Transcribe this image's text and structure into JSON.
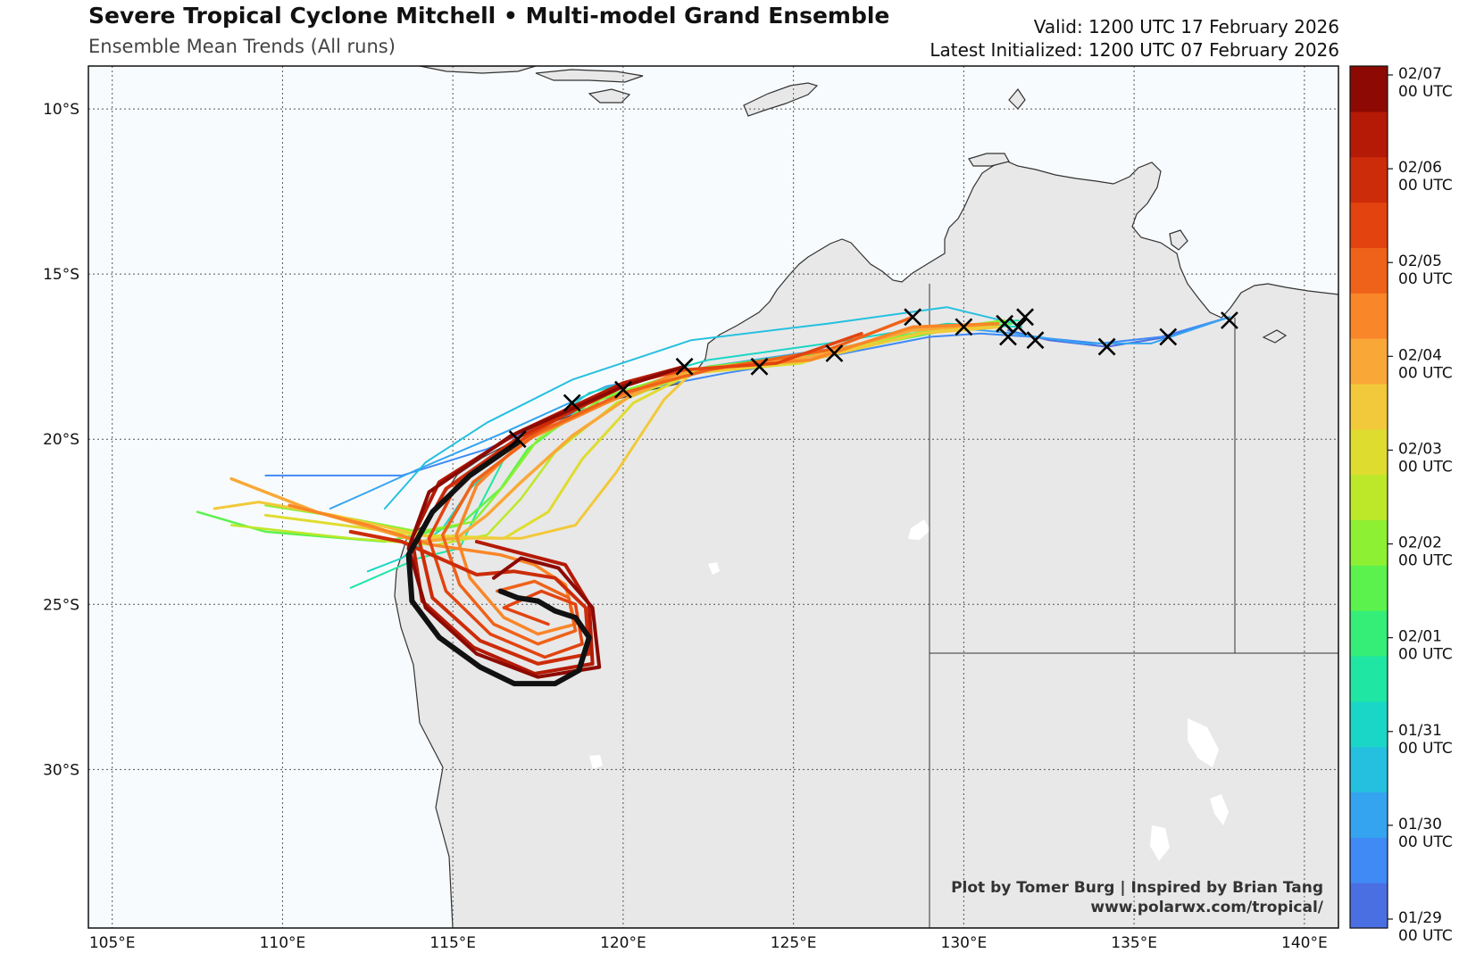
{
  "header": {
    "title": "Severe Tropical Cyclone Mitchell • Multi-model Grand Ensemble",
    "subtitle": "Ensemble Mean Trends (All runs)",
    "valid": "Valid: 1200 UTC 17 February 2026",
    "latest": "Latest Initialized: 1200 UTC 07 February 2026"
  },
  "credits": {
    "line1": "Plot by Tomer Burg | Inspired by Brian Tang",
    "line2": "www.polarwx.com/tropical/"
  },
  "map": {
    "lon_range": [
      104.3,
      141.0
    ],
    "lat_range": [
      -34.8,
      -8.7
    ],
    "lon_ticks": [
      {
        "value": 105,
        "label": "105°E"
      },
      {
        "value": 110,
        "label": "110°E"
      },
      {
        "value": 115,
        "label": "115°E"
      },
      {
        "value": 120,
        "label": "120°E"
      },
      {
        "value": 125,
        "label": "125°E"
      },
      {
        "value": 130,
        "label": "130°E"
      },
      {
        "value": 135,
        "label": "135°E"
      },
      {
        "value": 140,
        "label": "140°E"
      }
    ],
    "lat_ticks": [
      {
        "value": -10,
        "label": "10°S"
      },
      {
        "value": -15,
        "label": "15°S"
      },
      {
        "value": -20,
        "label": "20°S"
      },
      {
        "value": -25,
        "label": "25°S"
      },
      {
        "value": -30,
        "label": "30°S"
      }
    ],
    "gridlines": true,
    "ocean_color": "#f8fbfd",
    "land_color": "#e8e8e8"
  },
  "colorbar": {
    "colors": [
      "#4a6fe3",
      "#3f8af5",
      "#35a4f0",
      "#25c0e0",
      "#1ad6c6",
      "#1fe6a3",
      "#34ee78",
      "#5cf24d",
      "#8df033",
      "#bde82a",
      "#dfdc30",
      "#f2c93a",
      "#f9a838",
      "#f98628",
      "#ef6219",
      "#e2430f",
      "#cc2c09",
      "#b41a06",
      "#8c0a03"
    ],
    "labels": [
      {
        "line1": "02/07",
        "line2": "00 UTC"
      },
      {
        "line1": "02/06",
        "line2": "00 UTC"
      },
      {
        "line1": "02/05",
        "line2": "00 UTC"
      },
      {
        "line1": "02/04",
        "line2": "00 UTC"
      },
      {
        "line1": "02/03",
        "line2": "00 UTC"
      },
      {
        "line1": "02/02",
        "line2": "00 UTC"
      },
      {
        "line1": "02/01",
        "line2": "00 UTC"
      },
      {
        "line1": "01/31",
        "line2": "00 UTC"
      },
      {
        "line1": "01/30",
        "line2": "00 UTC"
      },
      {
        "line1": "01/29",
        "line2": "00 UTC"
      }
    ]
  },
  "tracks": [
    {
      "color": "#4a6fe3",
      "width": 2,
      "points": [
        [
          137.8,
          -16.3
        ],
        [
          136,
          -16.9
        ],
        [
          134.2,
          -17.2
        ],
        [
          132.5,
          -17.0
        ],
        [
          131.3,
          -16.7
        ]
      ]
    },
    {
      "color": "#3f8af5",
      "width": 2,
      "points": [
        [
          137.8,
          -16.3
        ],
        [
          135.8,
          -16.9
        ],
        [
          134,
          -17.1
        ],
        [
          132,
          -16.9
        ],
        [
          130.5,
          -16.8
        ],
        [
          129,
          -16.9
        ],
        [
          126,
          -17.5
        ],
        [
          123,
          -18.0
        ],
        [
          120.5,
          -18.5
        ],
        [
          118,
          -19.4
        ],
        [
          116,
          -20.3
        ],
        [
          113.5,
          -21.1
        ],
        [
          109.5,
          -21.1
        ]
      ]
    },
    {
      "color": "#35a4f0",
      "width": 2,
      "points": [
        [
          137.8,
          -16.3
        ],
        [
          135.5,
          -17.1
        ],
        [
          133.5,
          -17.1
        ],
        [
          131.5,
          -16.8
        ],
        [
          129.5,
          -16.6
        ],
        [
          126.5,
          -17.2
        ],
        [
          122.5,
          -17.8
        ],
        [
          119.5,
          -18.4
        ],
        [
          116.5,
          -19.8
        ],
        [
          114,
          -20.9
        ],
        [
          112.5,
          -21.6
        ],
        [
          111.4,
          -22.1
        ]
      ]
    },
    {
      "color": "#25c0e0",
      "width": 2,
      "points": [
        [
          131.5,
          -16.5
        ],
        [
          129.5,
          -16.0
        ],
        [
          126,
          -16.5
        ],
        [
          122,
          -17.0
        ],
        [
          118.5,
          -18.2
        ],
        [
          116,
          -19.5
        ],
        [
          114.2,
          -20.7
        ],
        [
          113,
          -22.1
        ]
      ]
    },
    {
      "color": "#1ad6c6",
      "width": 2,
      "points": [
        [
          131.7,
          -16.6
        ],
        [
          129.5,
          -16.5
        ],
        [
          126,
          -17.1
        ],
        [
          122.5,
          -17.6
        ],
        [
          119,
          -18.6
        ],
        [
          117,
          -20.1
        ],
        [
          115.5,
          -21.5
        ],
        [
          114.7,
          -22.7
        ],
        [
          113.5,
          -23.6
        ],
        [
          112.5,
          -24.0
        ]
      ]
    },
    {
      "color": "#1fe6a3",
      "width": 2,
      "points": [
        [
          131.6,
          -16.4
        ],
        [
          129.5,
          -16.6
        ],
        [
          126,
          -17.3
        ],
        [
          122,
          -17.9
        ],
        [
          118.5,
          -19.0
        ],
        [
          116.5,
          -20.6
        ],
        [
          115.8,
          -22.0
        ],
        [
          115.2,
          -23.3
        ],
        [
          114,
          -23.6
        ],
        [
          112,
          -24.5
        ]
      ]
    },
    {
      "color": "#5cf24d",
      "width": 2.5,
      "points": [
        [
          131.4,
          -16.5
        ],
        [
          129.5,
          -16.7
        ],
        [
          126,
          -17.4
        ],
        [
          122.5,
          -17.8
        ],
        [
          119,
          -18.9
        ],
        [
          117.2,
          -20.3
        ],
        [
          116.4,
          -21.5
        ],
        [
          115.2,
          -22.6
        ],
        [
          113,
          -23.1
        ],
        [
          109.5,
          -22.8
        ],
        [
          107.5,
          -22.2
        ]
      ]
    },
    {
      "color": "#8df033",
      "width": 2.5,
      "points": [
        [
          131.2,
          -16.4
        ],
        [
          129,
          -16.7
        ],
        [
          125.5,
          -17.5
        ],
        [
          122,
          -17.9
        ],
        [
          119.5,
          -18.7
        ],
        [
          117.5,
          -20.0
        ],
        [
          116.5,
          -21.4
        ],
        [
          115.6,
          -22.5
        ],
        [
          114,
          -22.8
        ],
        [
          112,
          -22.4
        ],
        [
          109.5,
          -22.0
        ]
      ]
    },
    {
      "color": "#bde82a",
      "width": 2.5,
      "points": [
        [
          131.0,
          -16.5
        ],
        [
          128.8,
          -16.8
        ],
        [
          125.5,
          -17.6
        ],
        [
          122.2,
          -17.9
        ],
        [
          119.8,
          -18.9
        ],
        [
          118,
          -20.4
        ],
        [
          117.0,
          -21.8
        ],
        [
          116.0,
          -22.9
        ],
        [
          114.5,
          -23.2
        ],
        [
          112,
          -23.0
        ],
        [
          108.5,
          -22.6
        ]
      ]
    },
    {
      "color": "#dfdc30",
      "width": 3,
      "points": [
        [
          131.0,
          -16.6
        ],
        [
          128.5,
          -16.7
        ],
        [
          125.2,
          -17.7
        ],
        [
          122.0,
          -18.0
        ],
        [
          120.3,
          -18.9
        ],
        [
          118.8,
          -20.6
        ],
        [
          117.8,
          -22.2
        ],
        [
          116.5,
          -23.0
        ],
        [
          114,
          -22.9
        ],
        [
          111,
          -22.5
        ],
        [
          109.5,
          -22.3
        ]
      ]
    },
    {
      "color": "#f2c93a",
      "width": 3,
      "points": [
        [
          131.1,
          -16.6
        ],
        [
          128.7,
          -16.8
        ],
        [
          125.5,
          -17.6
        ],
        [
          122.0,
          -18.0
        ],
        [
          121.2,
          -18.8
        ],
        [
          119.8,
          -21.0
        ],
        [
          118.6,
          -22.6
        ],
        [
          117,
          -23.0
        ],
        [
          114.5,
          -23.0
        ],
        [
          111.5,
          -22.3
        ],
        [
          109.3,
          -21.9
        ],
        [
          108,
          -22.1
        ]
      ]
    },
    {
      "color": "#f9a838",
      "width": 3.5,
      "points": [
        [
          131.0,
          -16.5
        ],
        [
          128.5,
          -16.7
        ],
        [
          125.5,
          -17.5
        ],
        [
          122.0,
          -17.9
        ],
        [
          120.2,
          -18.7
        ],
        [
          118.5,
          -19.9
        ],
        [
          117.0,
          -21.3
        ],
        [
          116.0,
          -22.3
        ],
        [
          115.1,
          -23.0
        ],
        [
          114.0,
          -23.1
        ],
        [
          111,
          -22.2
        ],
        [
          108.5,
          -21.2
        ]
      ]
    },
    {
      "color": "#f98628",
      "width": 3.5,
      "points": [
        [
          131.0,
          -16.5
        ],
        [
          128.5,
          -16.6
        ],
        [
          125.5,
          -17.6
        ],
        [
          121.8,
          -17.9
        ],
        [
          119.5,
          -18.9
        ],
        [
          117.0,
          -20.1
        ],
        [
          115.7,
          -21.4
        ],
        [
          115.1,
          -22.9
        ],
        [
          115.5,
          -24.2
        ],
        [
          116.5,
          -25.4
        ],
        [
          117.5,
          -25.9
        ],
        [
          118.6,
          -25.6
        ],
        [
          118.3,
          -24.4
        ],
        [
          117.4,
          -23.8
        ],
        [
          116.4,
          -23.5
        ],
        [
          114.4,
          -23.2
        ],
        [
          112.5,
          -22.6
        ],
        [
          110.2,
          -22.0
        ]
      ]
    },
    {
      "color": "#ef6219",
      "width": 3.5,
      "points": [
        [
          128.5,
          -16.3
        ],
        [
          126,
          -17.3
        ],
        [
          122.5,
          -17.9
        ],
        [
          120,
          -18.6
        ],
        [
          117.5,
          -19.8
        ],
        [
          115.6,
          -21.3
        ],
        [
          114.7,
          -22.9
        ],
        [
          115.2,
          -24.4
        ],
        [
          116.2,
          -25.6
        ],
        [
          117.5,
          -26.2
        ],
        [
          118.6,
          -25.8
        ],
        [
          118.4,
          -24.8
        ],
        [
          117.4,
          -24.3
        ],
        [
          116.3,
          -24.6
        ]
      ]
    },
    {
      "color": "#e2430f",
      "width": 3.5,
      "points": [
        [
          127,
          -16.8
        ],
        [
          124.5,
          -17.7
        ],
        [
          121.8,
          -17.9
        ],
        [
          119.8,
          -18.4
        ],
        [
          117.2,
          -19.9
        ],
        [
          115.1,
          -21.4
        ],
        [
          114.3,
          -23.0
        ],
        [
          114.8,
          -24.6
        ],
        [
          116.1,
          -25.9
        ],
        [
          117.7,
          -26.6
        ],
        [
          118.8,
          -26.2
        ],
        [
          118.6,
          -25.0
        ],
        [
          117.6,
          -24.6
        ],
        [
          116.5,
          -25.1
        ],
        [
          117.8,
          -25.6
        ]
      ]
    },
    {
      "color": "#cc2c09",
      "width": 4,
      "points": [
        [
          121.8,
          -17.8
        ],
        [
          120.0,
          -18.4
        ],
        [
          117.0,
          -19.9
        ],
        [
          114.8,
          -21.5
        ],
        [
          114.0,
          -23.0
        ],
        [
          114.4,
          -24.8
        ],
        [
          115.8,
          -26.1
        ],
        [
          117.5,
          -26.8
        ],
        [
          119.0,
          -26.5
        ],
        [
          118.9,
          -25.1
        ],
        [
          118.0,
          -24.2
        ],
        [
          116.8,
          -24.0
        ],
        [
          115.7,
          -24.1
        ],
        [
          114.6,
          -23.6
        ],
        [
          113.5,
          -23.1
        ],
        [
          112,
          -22.8
        ]
      ]
    },
    {
      "color": "#b41a06",
      "width": 4,
      "points": [
        [
          121.8,
          -17.8
        ],
        [
          120.0,
          -18.3
        ],
        [
          116.9,
          -19.8
        ],
        [
          114.6,
          -21.3
        ],
        [
          113.8,
          -23.0
        ],
        [
          114.1,
          -24.9
        ],
        [
          115.6,
          -26.3
        ],
        [
          117.4,
          -27.1
        ],
        [
          119.1,
          -26.8
        ],
        [
          119.0,
          -25.0
        ],
        [
          118.3,
          -23.8
        ],
        [
          116.8,
          -23.4
        ],
        [
          115.7,
          -23.1
        ]
      ]
    },
    {
      "color": "#8c0a03",
      "width": 4,
      "points": [
        [
          121.8,
          -17.8
        ],
        [
          120.0,
          -18.4
        ],
        [
          116.7,
          -19.9
        ],
        [
          114.3,
          -21.6
        ],
        [
          113.7,
          -23.3
        ],
        [
          114.2,
          -25.1
        ],
        [
          115.7,
          -26.5
        ],
        [
          117.5,
          -27.2
        ],
        [
          119.3,
          -26.9
        ],
        [
          119.1,
          -25.1
        ],
        [
          118.1,
          -23.9
        ],
        [
          117.0,
          -23.6
        ],
        [
          116.2,
          -24.2
        ]
      ]
    },
    {
      "color": "#111111",
      "width": 6,
      "points": [
        [
          116.9,
          -20.1
        ],
        [
          115.5,
          -21.1
        ],
        [
          114.4,
          -22.2
        ],
        [
          113.7,
          -23.5
        ],
        [
          113.8,
          -24.9
        ],
        [
          114.6,
          -26.0
        ],
        [
          115.8,
          -26.9
        ],
        [
          116.8,
          -27.4
        ],
        [
          118.0,
          -27.4
        ],
        [
          118.7,
          -27.0
        ],
        [
          119.0,
          -26.0
        ],
        [
          118.6,
          -25.4
        ],
        [
          118.0,
          -25.2
        ],
        [
          117.5,
          -24.9
        ],
        [
          116.9,
          -24.8
        ],
        [
          116.4,
          -24.6
        ]
      ]
    }
  ],
  "markers": [
    [
      137.8,
      -16.4
    ],
    [
      136.0,
      -16.9
    ],
    [
      134.2,
      -17.2
    ],
    [
      132.1,
      -17.0
    ],
    [
      131.8,
      -16.3
    ],
    [
      131.6,
      -16.6
    ],
    [
      131.2,
      -16.5
    ],
    [
      131.3,
      -16.9
    ],
    [
      130.0,
      -16.6
    ],
    [
      128.5,
      -16.3
    ],
    [
      126.2,
      -17.4
    ],
    [
      124.0,
      -17.8
    ],
    [
      121.8,
      -17.8
    ],
    [
      120.0,
      -18.5
    ],
    [
      118.5,
      -18.9
    ],
    [
      116.9,
      -20.0
    ]
  ]
}
